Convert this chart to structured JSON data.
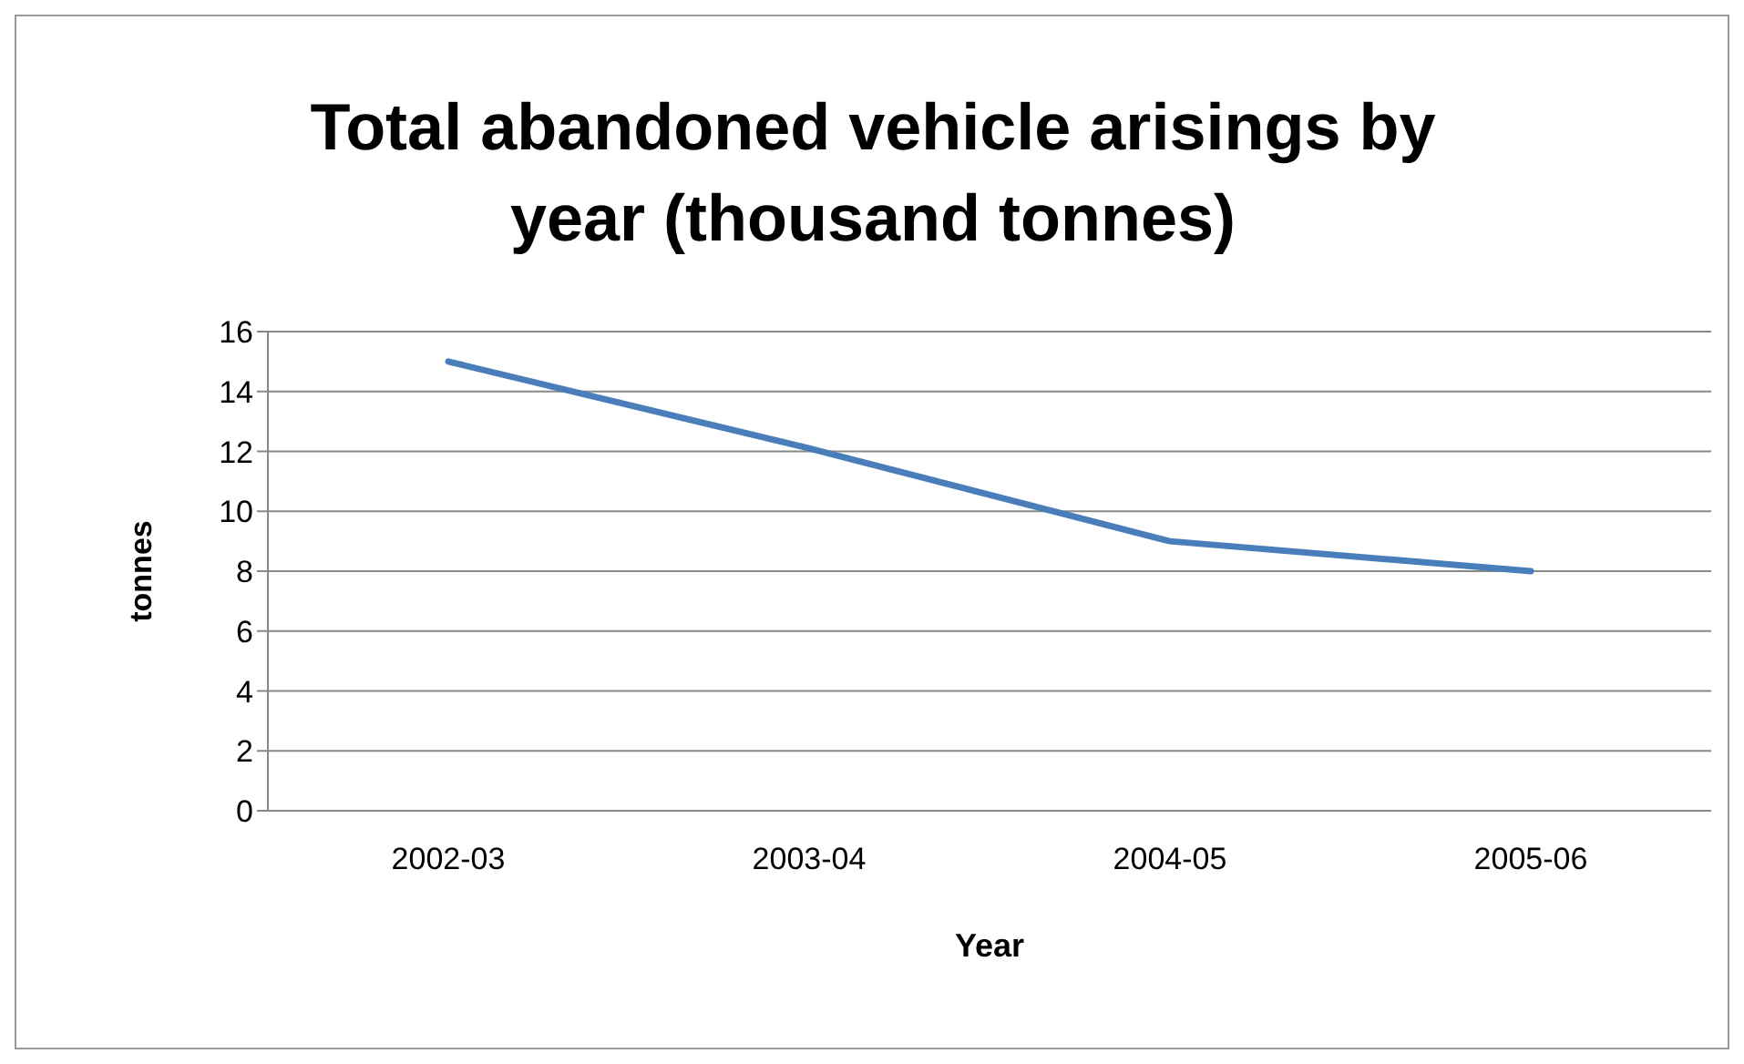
{
  "chart_data": {
    "type": "line",
    "title": "Total abandoned vehicle arisings by year  (thousand tonnes)",
    "xlabel": "Year",
    "ylabel": "tonnes",
    "categories": [
      "2002-03",
      "2003-04",
      "2004-05",
      "2005-06"
    ],
    "series": [
      {
        "color": "#4a7ebb",
        "values": [
          15,
          12.1,
          9,
          8
        ]
      }
    ],
    "ylim": [
      0,
      16
    ],
    "yticks": [
      0,
      2,
      4,
      6,
      8,
      10,
      12,
      14,
      16
    ],
    "grid": "y",
    "marker": "none",
    "line_style": "solid"
  }
}
